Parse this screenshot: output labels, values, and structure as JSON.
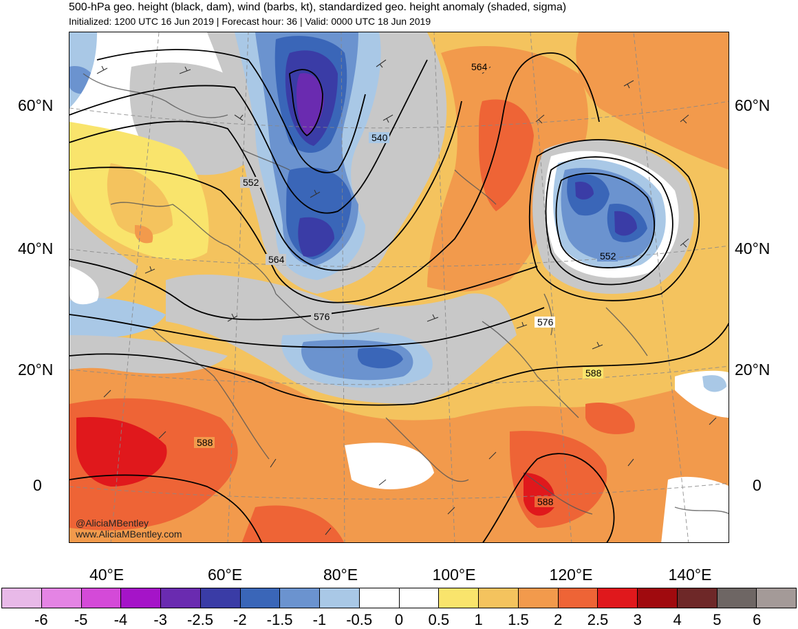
{
  "header": {
    "title": "500-hPa geo. height (black, dam), wind (barbs, kt), standardized geo. height anomaly (shaded, sigma)",
    "subtitle": "Initialized: 1200 UTC 16 Jun 2019 | Forecast hour: 36 | Valid: 0000 UTC 18 Jun 2019"
  },
  "map": {
    "lat_labels": [
      "60°N",
      "40°N",
      "20°N",
      "0"
    ],
    "lon_labels": [
      "40°E",
      "60°E",
      "80°E",
      "100°E",
      "120°E",
      "140°E"
    ],
    "contour_labels": [
      "564",
      "540",
      "552",
      "564",
      "576",
      "552",
      "576",
      "588",
      "588",
      "588"
    ],
    "credit": [
      "@AliciaMBentley",
      "www.AliciaMBentley.com"
    ]
  },
  "colorbar": {
    "labels": [
      "-6",
      "-5",
      "-4",
      "-3",
      "-2.5",
      "-2",
      "-1.5",
      "-1",
      "-0.5",
      "0",
      "0.5",
      "1",
      "1.5",
      "2",
      "2.5",
      "3",
      "4",
      "5",
      "6"
    ],
    "colors": [
      "#e8b9e8",
      "#e484e4",
      "#d44ad8",
      "#a514c8",
      "#6a2bb0",
      "#3a3ca6",
      "#3a66b8",
      "#6b93cf",
      "#a9c8e6",
      "#ffffff",
      "#ffffff",
      "#f9e46c",
      "#f4c35e",
      "#f29a4c",
      "#ee6436",
      "#e0181c",
      "#a00a0e",
      "#6e2828",
      "#6e6664",
      "#a49a98"
    ]
  }
}
